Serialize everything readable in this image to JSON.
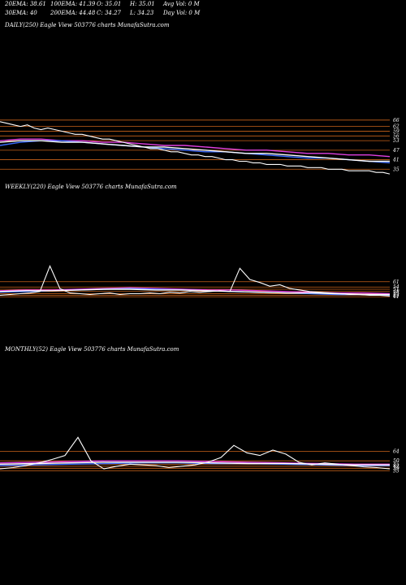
{
  "header": {
    "ema20": "20EMA: 38.61",
    "ema30": "30EMA: 40",
    "ema100": "100EMA: 41.39",
    "ema200": "200EMA: 44.48",
    "open": "O: 35.01",
    "close": "C: 34.27",
    "high": "H: 35.01",
    "low": "L: 34.23",
    "avgvol": "Avg Vol: 0  M",
    "dayvol": "Day Vol: 0  M"
  },
  "chart_data": [
    {
      "type": "line",
      "title": "DAILY(250) Eagle  View  503776  charts MunafaSutra.com",
      "ylim": [
        30,
        70
      ],
      "price_levels": [
        66,
        62,
        59,
        56,
        53,
        47,
        41,
        35
      ],
      "price": [
        65,
        64,
        63,
        62,
        63,
        61,
        60,
        61,
        60,
        59,
        58,
        57,
        57,
        56,
        55,
        54,
        54,
        53,
        52,
        51,
        50,
        49,
        48,
        48,
        47,
        46,
        46,
        45,
        44,
        44,
        43,
        43,
        42,
        41,
        41,
        40,
        40,
        39,
        39,
        38,
        38,
        38,
        37,
        37,
        37,
        36,
        36,
        36,
        35,
        35,
        35,
        34,
        34,
        34,
        34,
        33,
        33,
        32
      ],
      "series": [
        {
          "color": "#e040e0",
          "values": [
            53,
            54,
            54,
            53,
            53,
            52,
            52,
            51,
            50,
            50,
            49,
            48,
            47,
            47,
            46,
            45,
            45,
            44,
            44,
            43
          ]
        },
        {
          "color": "#3a6cff",
          "values": [
            50,
            52,
            53,
            53,
            52,
            51,
            50,
            49,
            48,
            47,
            46,
            46,
            45,
            44,
            43,
            42,
            42,
            41,
            40,
            39
          ]
        },
        {
          "color": "#ffffff",
          "values": [
            52,
            53,
            53,
            52,
            52,
            51,
            50,
            49,
            49,
            48,
            47,
            46,
            45,
            45,
            44,
            43,
            42,
            41,
            40,
            40
          ]
        }
      ]
    },
    {
      "type": "line",
      "title": "WEEKLY(220) Eagle  View  503776  charts MunafaSutra.com",
      "ylim": [
        25,
        90
      ],
      "price_levels": [
        61,
        54,
        51,
        48,
        45,
        43,
        41
      ],
      "price": [
        43,
        44,
        45,
        46,
        48,
        82,
        52,
        46,
        45,
        44,
        45,
        46,
        44,
        45,
        45,
        46,
        45,
        47,
        46,
        48,
        47,
        48,
        49,
        48,
        79,
        64,
        60,
        55,
        57,
        52,
        50,
        48,
        47,
        46,
        45,
        44,
        44,
        43,
        43,
        42
      ],
      "series": [
        {
          "color": "#e040e0",
          "values": [
            49,
            50,
            50,
            51,
            52,
            53,
            52,
            51,
            50,
            50,
            49,
            48,
            47,
            46,
            46,
            45
          ]
        },
        {
          "color": "#3a6cff",
          "values": [
            47,
            48,
            49,
            50,
            51,
            52,
            51,
            50,
            49,
            48,
            47,
            46,
            45,
            44,
            44,
            43
          ]
        },
        {
          "color": "#ffffff",
          "values": [
            48,
            49,
            49,
            50,
            51,
            51,
            50,
            50,
            49,
            48,
            47,
            46,
            46,
            45,
            44,
            44
          ]
        }
      ]
    },
    {
      "type": "line",
      "title": "MONTHLY(52) Eagle  View  503776  charts MunafaSutra.com",
      "ylim": [
        20,
        95
      ],
      "price_levels": [
        64,
        50,
        45,
        42,
        39,
        35
      ],
      "price": [
        38,
        40,
        43,
        47,
        52,
        58,
        85,
        50,
        38,
        42,
        45,
        44,
        43,
        40,
        42,
        44,
        48,
        55,
        73,
        62,
        58,
        66,
        60,
        48,
        44,
        47,
        45,
        43,
        41,
        40,
        38
      ],
      "series": [
        {
          "color": "#e040e0",
          "values": [
            47,
            48,
            49,
            50,
            50,
            50,
            49,
            48,
            47,
            46,
            45,
            45
          ]
        },
        {
          "color": "#3a6cff",
          "values": [
            43,
            44,
            45,
            46,
            47,
            47,
            46,
            46,
            45,
            44,
            43,
            43
          ]
        },
        {
          "color": "#ffffff",
          "values": [
            45,
            46,
            47,
            48,
            48,
            48,
            47,
            46,
            46,
            45,
            44,
            44
          ]
        }
      ]
    }
  ]
}
